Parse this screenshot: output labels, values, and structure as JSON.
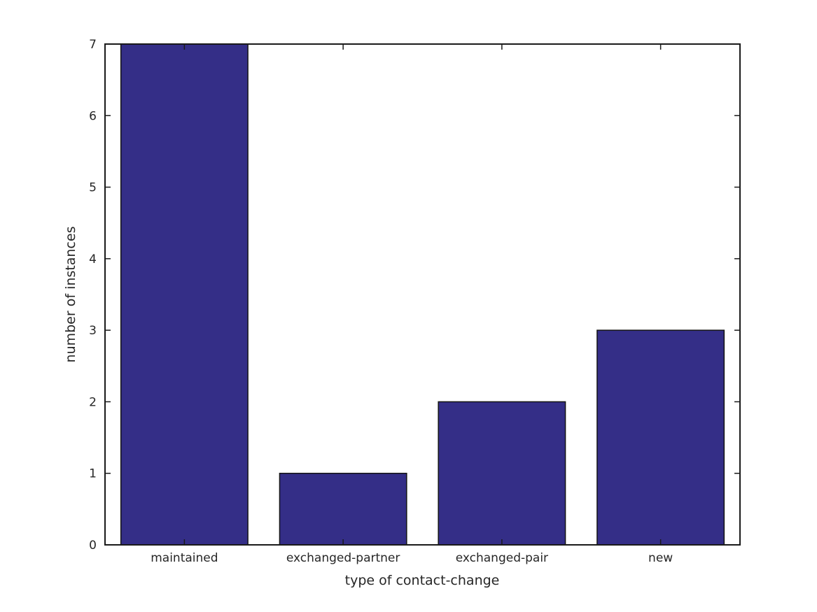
{
  "chart_data": {
    "type": "bar",
    "categories": [
      "maintained",
      "exchanged-partner",
      "exchanged-pair",
      "new"
    ],
    "values": [
      7,
      1,
      2,
      3
    ],
    "title": "",
    "xlabel": "type of contact-change",
    "ylabel": "number of instances",
    "ylim": [
      0,
      7
    ],
    "yticks": [
      0,
      1,
      2,
      3,
      4,
      5,
      6,
      7
    ],
    "bar_width_fraction": 0.8,
    "grid": false,
    "legend": "none",
    "tick_direction": "in",
    "bar_color": "#342e87",
    "bar_edge_color": "#141414",
    "axis_color": "#1a1a1a",
    "text_color": "#262626",
    "background_color": "#ffffff"
  }
}
